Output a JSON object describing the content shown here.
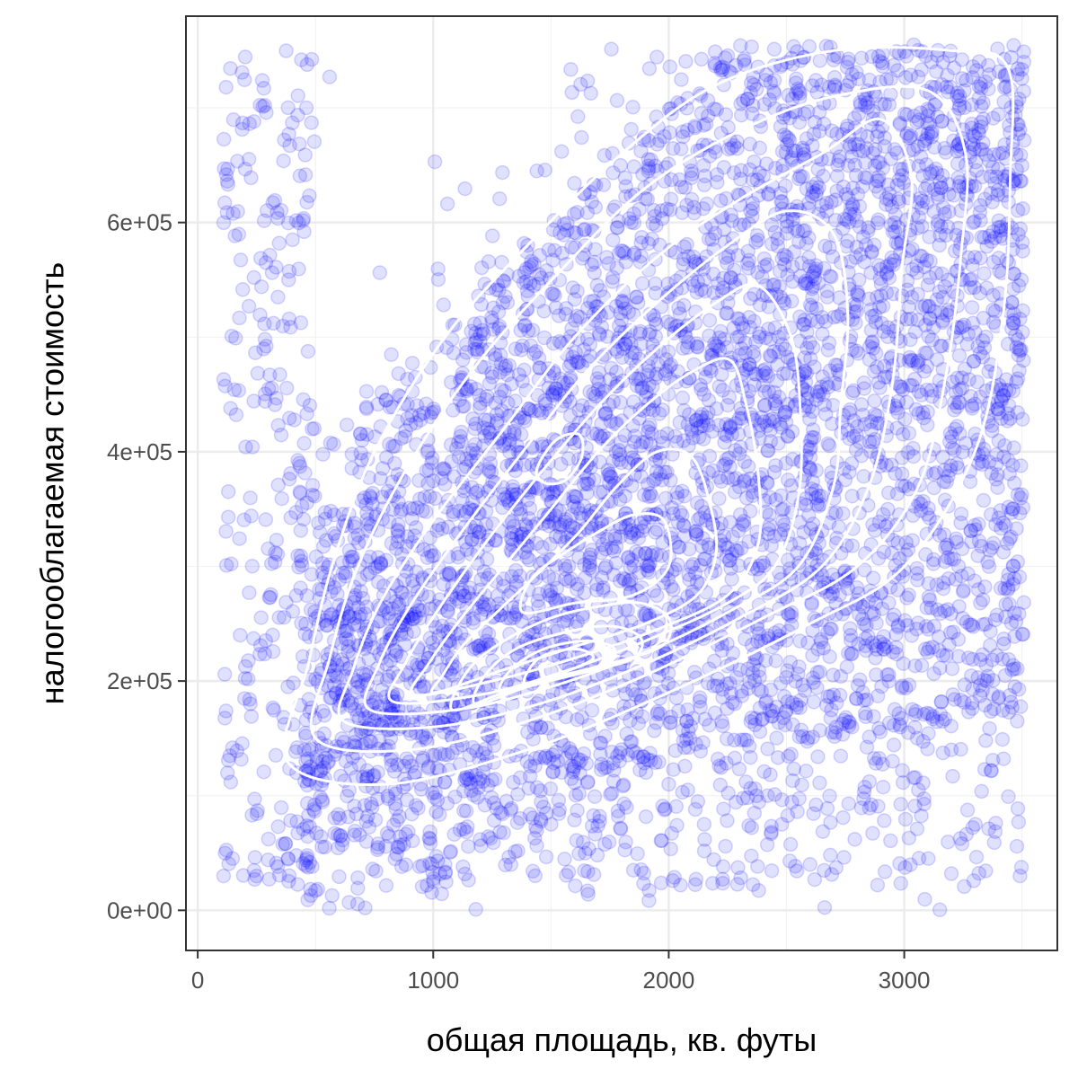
{
  "chart_data": {
    "type": "scatter",
    "title": "",
    "xlabel": "общая площадь, кв. футы",
    "ylabel": "налогооблагаемая стоимость",
    "xlim": [
      -50,
      3650
    ],
    "ylim": [
      -35000,
      780000
    ],
    "x_ticks": [
      0,
      1000,
      2000,
      3000
    ],
    "x_tick_labels": [
      "0",
      "1000",
      "2000",
      "3000"
    ],
    "y_ticks": [
      0,
      200000,
      400000,
      600000
    ],
    "y_tick_labels": [
      "0e+00",
      "2e+05",
      "4e+05",
      "6e+05"
    ],
    "grid": true,
    "point_color": "#0000ff",
    "point_alpha": 0.12,
    "contour_color": "#ffffff",
    "sample_points": [
      [
        120,
        718000
      ],
      [
        290,
        565000
      ],
      [
        560,
        727000
      ],
      [
        130,
        343000
      ],
      [
        180,
        240000
      ],
      [
        330,
        312000
      ],
      [
        110,
        30000
      ],
      [
        250,
        30000
      ],
      [
        340,
        38000
      ],
      [
        1330,
        40000
      ],
      [
        1500,
        75000
      ],
      [
        2150,
        75000
      ],
      [
        2480,
        75000
      ],
      [
        2420,
        100000
      ],
      [
        2000,
        110000
      ],
      [
        2860,
        92000
      ],
      [
        2950,
        130000
      ],
      [
        3020,
        63000
      ],
      [
        3200,
        140000
      ],
      [
        3350,
        200000
      ],
      [
        3480,
        165000
      ],
      [
        3520,
        305000
      ],
      [
        3430,
        256000
      ],
      [
        3060,
        105000
      ],
      [
        2600,
        40000
      ],
      [
        3200,
        32000
      ],
      [
        1850,
        35000
      ],
      [
        1000,
        25000
      ],
      [
        420,
        120000
      ],
      [
        600,
        760000
      ]
    ],
    "density_contours": [
      [
        [
          380,
          130000
        ],
        [
          800,
          110000
        ],
        [
          1400,
          140000
        ],
        [
          2000,
          190000
        ],
        [
          2600,
          250000
        ],
        [
          3000,
          300000
        ],
        [
          3300,
          400000
        ],
        [
          3420,
          520000
        ],
        [
          3450,
          640000
        ],
        [
          3440,
          735000
        ],
        [
          3200,
          750000
        ],
        [
          2700,
          750000
        ],
        [
          2200,
          720000
        ],
        [
          1800,
          660000
        ],
        [
          1400,
          580000
        ],
        [
          1050,
          500000
        ],
        [
          750,
          400000
        ],
        [
          570,
          300000
        ],
        [
          470,
          215000
        ]
      ],
      [
        [
          500,
          150000
        ],
        [
          900,
          140000
        ],
        [
          1400,
          165000
        ],
        [
          1900,
          205000
        ],
        [
          2400,
          255000
        ],
        [
          2800,
          300000
        ],
        [
          3060,
          370000
        ],
        [
          3180,
          470000
        ],
        [
          3240,
          570000
        ],
        [
          3260,
          660000
        ],
        [
          3100,
          715000
        ],
        [
          2700,
          710000
        ],
        [
          2300,
          680000
        ],
        [
          1900,
          630000
        ],
        [
          1550,
          560000
        ],
        [
          1200,
          480000
        ],
        [
          900,
          390000
        ],
        [
          680,
          300000
        ],
        [
          560,
          220000
        ]
      ],
      [
        [
          620,
          165000
        ],
        [
          1000,
          160000
        ],
        [
          1450,
          180000
        ],
        [
          1900,
          215000
        ],
        [
          2300,
          255000
        ],
        [
          2650,
          300000
        ],
        [
          2850,
          370000
        ],
        [
          2950,
          460000
        ],
        [
          2990,
          560000
        ],
        [
          3030,
          640000
        ],
        [
          2900,
          690000
        ],
        [
          2650,
          660000
        ],
        [
          2300,
          620000
        ],
        [
          1950,
          570000
        ],
        [
          1600,
          500000
        ],
        [
          1300,
          420000
        ],
        [
          1000,
          340000
        ],
        [
          780,
          270000
        ],
        [
          660,
          210000
        ]
      ],
      [
        [
          730,
          175000
        ],
        [
          1100,
          175000
        ],
        [
          1500,
          195000
        ],
        [
          1900,
          225000
        ],
        [
          2250,
          260000
        ],
        [
          2550,
          300000
        ],
        [
          2700,
          370000
        ],
        [
          2730,
          440000
        ],
        [
          2760,
          520000
        ],
        [
          2700,
          590000
        ],
        [
          2500,
          610000
        ],
        [
          2250,
          580000
        ],
        [
          1950,
          530000
        ],
        [
          1650,
          470000
        ],
        [
          1380,
          400000
        ],
        [
          1120,
          330000
        ],
        [
          900,
          265000
        ],
        [
          770,
          215000
        ]
      ],
      [
        [
          830,
          182000
        ],
        [
          1200,
          188000
        ],
        [
          1550,
          208000
        ],
        [
          1900,
          235000
        ],
        [
          2250,
          268000
        ],
        [
          2450,
          300000
        ],
        [
          2550,
          360000
        ],
        [
          2560,
          430000
        ],
        [
          2520,
          500000
        ],
        [
          2380,
          545000
        ],
        [
          2200,
          530000
        ],
        [
          1950,
          490000
        ],
        [
          1700,
          440000
        ],
        [
          1450,
          380000
        ],
        [
          1220,
          320000
        ],
        [
          1020,
          262000
        ],
        [
          880,
          215000
        ]
      ],
      [
        [
          920,
          188000
        ],
        [
          1250,
          200000
        ],
        [
          1600,
          220000
        ],
        [
          1950,
          245000
        ],
        [
          2250,
          275000
        ],
        [
          2380,
          320000
        ],
        [
          2380,
          380000
        ],
        [
          2330,
          440000
        ],
        [
          2260,
          480000
        ],
        [
          2100,
          470000
        ],
        [
          1900,
          440000
        ],
        [
          1700,
          400000
        ],
        [
          1500,
          350000
        ],
        [
          1300,
          300000
        ],
        [
          1120,
          255000
        ],
        [
          980,
          215000
        ]
      ],
      [
        [
          1010,
          190000
        ],
        [
          1300,
          210000
        ],
        [
          1600,
          230000
        ],
        [
          1900,
          250000
        ],
        [
          2120,
          275000
        ],
        [
          2200,
          310000
        ],
        [
          2180,
          350000
        ],
        [
          2100,
          395000
        ],
        [
          1950,
          400000
        ],
        [
          1780,
          370000
        ],
        [
          1620,
          330000
        ],
        [
          1450,
          295000
        ],
        [
          1280,
          262000
        ],
        [
          1130,
          232000
        ],
        [
          1040,
          205000
        ]
      ],
      [
        [
          1380,
          260000
        ],
        [
          1600,
          268000
        ],
        [
          1850,
          275000
        ],
        [
          2000,
          300000
        ],
        [
          1980,
          340000
        ],
        [
          1850,
          345000
        ],
        [
          1700,
          330000
        ],
        [
          1560,
          312000
        ],
        [
          1420,
          290000
        ]
      ],
      [
        [
          1440,
          385000
        ],
        [
          1520,
          410000
        ],
        [
          1620,
          415000
        ],
        [
          1630,
          395000
        ],
        [
          1560,
          375000
        ],
        [
          1470,
          373000
        ]
      ],
      [
        [
          1080,
          175000
        ],
        [
          1300,
          190000
        ],
        [
          1550,
          205000
        ],
        [
          1800,
          218000
        ],
        [
          1980,
          232000
        ],
        [
          2000,
          255000
        ],
        [
          1880,
          268000
        ],
        [
          1700,
          265000
        ],
        [
          1500,
          255000
        ],
        [
          1300,
          235000
        ],
        [
          1150,
          210000
        ]
      ],
      [
        [
          1180,
          180000
        ],
        [
          1400,
          195000
        ],
        [
          1650,
          208000
        ],
        [
          1850,
          220000
        ],
        [
          1880,
          238000
        ],
        [
          1750,
          248000
        ],
        [
          1550,
          242000
        ],
        [
          1350,
          228000
        ],
        [
          1220,
          205000
        ]
      ],
      [
        [
          1290,
          190000
        ],
        [
          1500,
          203000
        ],
        [
          1700,
          213000
        ],
        [
          1770,
          228000
        ],
        [
          1650,
          235000
        ],
        [
          1470,
          228000
        ],
        [
          1330,
          210000
        ]
      ],
      [
        [
          1390,
          198000
        ],
        [
          1560,
          208000
        ],
        [
          1680,
          220000
        ],
        [
          1600,
          228000
        ],
        [
          1450,
          220000
        ]
      ]
    ]
  }
}
